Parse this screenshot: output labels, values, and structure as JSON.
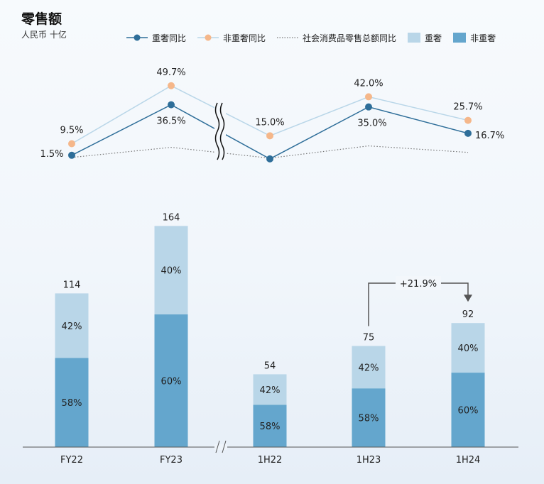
{
  "header": {
    "title": "零售额",
    "unit": "人民币 十亿"
  },
  "colors": {
    "luxury": "#b9d6e8",
    "non_luxury": "#64a6cd",
    "luxury_yoy_line": "#2e6e99",
    "non_luxury_yoy_line": "#f5b78a",
    "non_luxury_yoy_connector": "#b9d6e8",
    "social_retail_line": "#777777"
  },
  "chart_data": {
    "type": "bar",
    "categories": [
      "FY22",
      "FY23",
      "1H22",
      "1H23",
      "1H24"
    ],
    "axis_break_between": [
      "FY23",
      "1H22"
    ],
    "series": [
      {
        "name": "非重奢",
        "kind": "bar",
        "stack_position": "bottom",
        "values_pct": [
          58,
          60,
          58,
          58,
          60
        ],
        "labels": [
          "58%",
          "60%",
          "58%",
          "58%",
          "60%"
        ]
      },
      {
        "name": "重奢",
        "kind": "bar",
        "stack_position": "top",
        "values_pct": [
          42,
          40,
          42,
          42,
          40
        ],
        "labels": [
          "42%",
          "40%",
          "42%",
          "42%",
          "40%"
        ]
      }
    ],
    "totals": [
      114,
      164,
      54,
      75,
      92
    ],
    "total_labels": [
      "114",
      "164",
      "54",
      "75",
      "92"
    ],
    "lines": [
      {
        "name": "重奢同比",
        "values": [
          1.5,
          36.5,
          -1.0,
          35.0,
          16.7
        ],
        "labels": [
          "1.5%",
          "36.5%",
          "",
          "35.0%",
          "16.7%"
        ]
      },
      {
        "name": "非重奢同比",
        "values": [
          9.5,
          49.7,
          15.0,
          42.0,
          25.7
        ],
        "labels": [
          "9.5%",
          "49.7%",
          "15.0%",
          "42.0%",
          "25.7%"
        ]
      },
      {
        "name": "社会消费品零售总额同比",
        "style": "dotted",
        "values": [
          0.0,
          7.0,
          -0.5,
          8.0,
          3.5
        ]
      }
    ],
    "line_ylim": [
      -5,
      55
    ],
    "bar_ylim": [
      0,
      190
    ],
    "annotation": {
      "from": "1H23",
      "to": "1H24",
      "label": "+21.9%"
    },
    "legend": {
      "position": "top-right",
      "items": [
        {
          "label": "重奢同比",
          "type": "line-marker",
          "series": "重奢同比"
        },
        {
          "label": "非重奢同比",
          "type": "line-marker",
          "series": "非重奢同比"
        },
        {
          "label": "社会消费品零售总额同比",
          "type": "dotted-line",
          "series": "社会消费品零售总额同比"
        },
        {
          "label": "重奢",
          "type": "swatch",
          "series": "重奢"
        },
        {
          "label": "非重奢",
          "type": "swatch",
          "series": "非重奢"
        }
      ]
    }
  }
}
